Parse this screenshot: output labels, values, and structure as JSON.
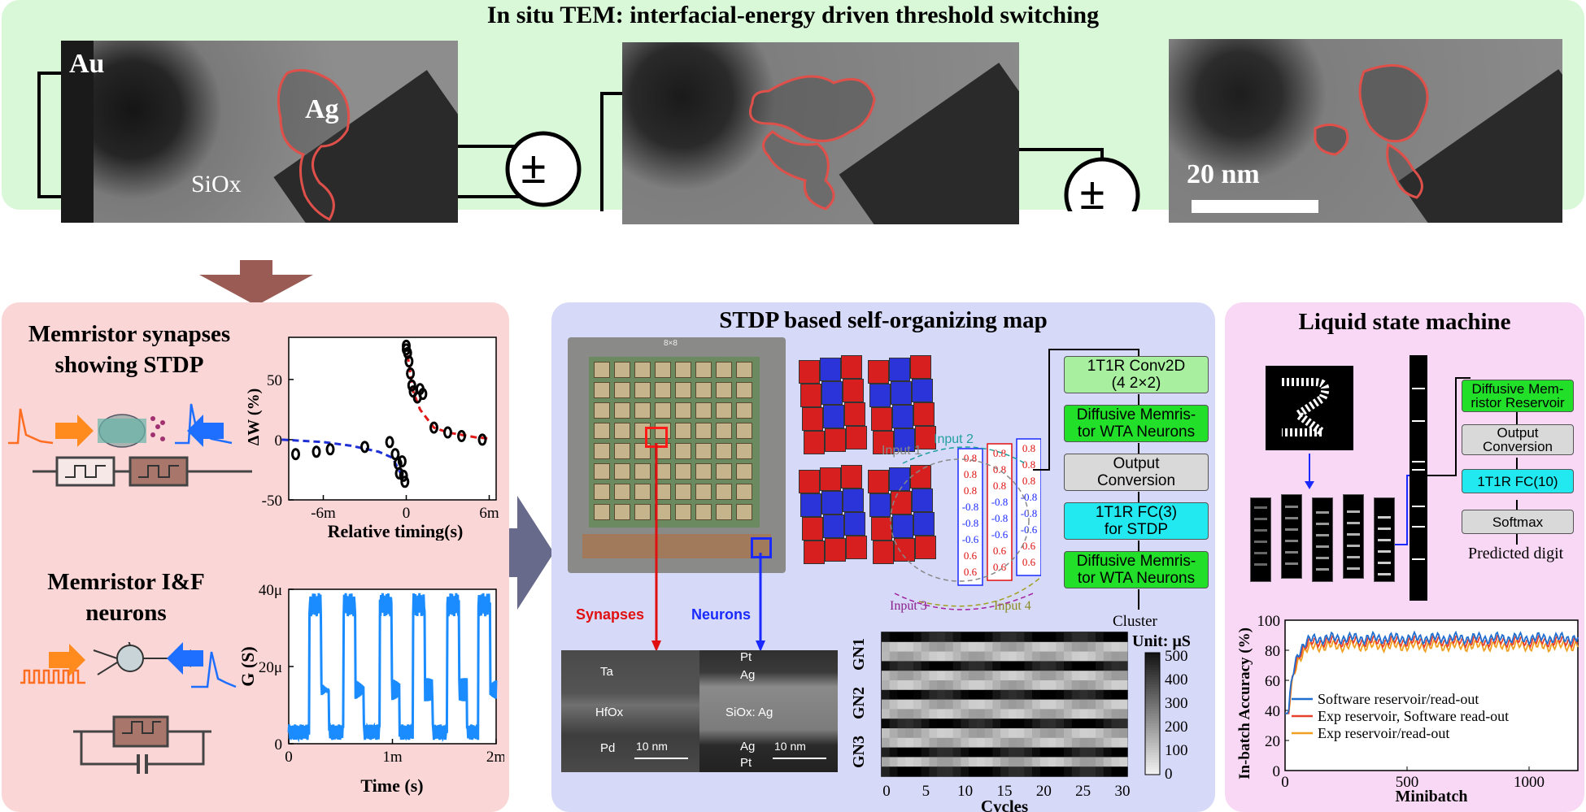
{
  "top_panel": {
    "title": "In situ TEM: interfacial-energy driven threshold switching",
    "labels": {
      "au": "Au",
      "ag": "Ag",
      "siox": "SiOx",
      "scale": "20 nm"
    },
    "source_symbol": "±"
  },
  "stdp_panel": {
    "title": "Memristor synapses showing STDP",
    "chart_data": {
      "type": "scatter",
      "xlabel": "Relative timing(s)",
      "ylabel": "ΔW (%)",
      "xlim": [
        -8.5,
        6.5
      ],
      "ylim": [
        -50,
        85
      ],
      "x_unit_suffix": "m",
      "x_ticks": [
        "-6m",
        "0",
        "6m"
      ],
      "y_ticks": [
        "50",
        "0",
        "-50"
      ],
      "points_x": [
        -8,
        -6.5,
        -5.5,
        -3,
        -1.2,
        -0.8,
        -0.6,
        -0.5,
        -0.3,
        -0.2,
        -0.1,
        0,
        0,
        0.1,
        0.2,
        0.3,
        0.4,
        0.5,
        0.8,
        1,
        1.2,
        2,
        3,
        4,
        5.5
      ],
      "points_y": [
        -12,
        -10,
        -8,
        -6,
        -2,
        -12,
        -20,
        -28,
        -18,
        -30,
        -35,
        78,
        75,
        72,
        65,
        55,
        45,
        40,
        35,
        42,
        38,
        10,
        6,
        3,
        0
      ],
      "fit_neg": {
        "x": [
          -9,
          -6,
          -4,
          -2,
          -1,
          -0.4
        ],
        "y": [
          0,
          -2,
          -5,
          -10,
          -15,
          -28
        ]
      },
      "fit_pos": {
        "x": [
          0.1,
          0.5,
          1,
          2,
          3,
          4,
          5,
          6
        ],
        "y": [
          70,
          40,
          25,
          10,
          6,
          4,
          2,
          1
        ]
      },
      "colors": {
        "neg": "#1f2fd6",
        "pos": "#e01818"
      }
    }
  },
  "neuron_panel": {
    "title": "Memristor I&F neurons",
    "chart_data": {
      "type": "line",
      "xlabel": "Time (s)",
      "ylabel": "G (S)",
      "xlim": [
        0,
        2
      ],
      "ylim": [
        0,
        40
      ],
      "x_ticks": [
        "0",
        "1m",
        "2m"
      ],
      "y_ticks": [
        "40μ",
        "20μ",
        "0"
      ],
      "spike_times": [
        0.22,
        0.55,
        0.9,
        1.22,
        1.55,
        1.85
      ],
      "color": "#1a8cff"
    }
  },
  "som_panel": {
    "title": "STDP based self-organizing map",
    "labels": {
      "synapses": "Synapses",
      "neurons": "Neurons",
      "input1": "Input 1",
      "input2": "Input 2",
      "input3": "Input 3",
      "input4": "Input 4",
      "cluster": "Cluster",
      "chip": "8×8",
      "ta": "Ta",
      "hfox": "HfOx",
      "pd": "Pd",
      "pt_top": "Pt",
      "ag_top": "Ag",
      "sioxag": "SiOx: Ag",
      "ag_bot": "Ag",
      "pt_bot": "Pt",
      "scale": "10 nm"
    },
    "weights": [
      "0.8",
      "0.8",
      "0.8",
      "-0.8",
      "-0.8",
      "-0.6",
      "0.6",
      "0.6"
    ],
    "pipeline": [
      {
        "label": "1T1R Conv2D\n(4 2×2)",
        "color": "#a8f0a0"
      },
      {
        "label": "Diffusive Memris-\ntor WTA Neurons",
        "color": "#22e02a"
      },
      {
        "label": "Output\nConversion",
        "color": "#d9d9d9"
      },
      {
        "label": "1T1R FC(3)\nfor STDP",
        "color": "#22e8f0"
      },
      {
        "label": "Diffusive Memris-\ntor WTA Neurons",
        "color": "#22e02a"
      }
    ],
    "heatmap": {
      "xlabel": "Cycles",
      "x_ticks": [
        "0",
        "5",
        "10",
        "15",
        "20",
        "25",
        "30"
      ],
      "row_labels": [
        "GN1",
        "GN2",
        "GN3"
      ],
      "colorbar_title": "Unit:  μS",
      "colorbar_ticks": [
        "500",
        "400",
        "300",
        "200",
        "100",
        "0"
      ]
    }
  },
  "lsm_panel": {
    "title": "Liquid state machine",
    "pipeline": [
      {
        "label": "Diffusive Mem-\nristor Reservoir",
        "color": "#22e02a"
      },
      {
        "label": "Output\nConversion",
        "color": "#d9d9d9"
      },
      {
        "label": "1T1R FC(10)",
        "color": "#22e8f0"
      },
      {
        "label": "Softmax",
        "color": "#d9d9d9"
      }
    ],
    "predicted": "Predicted digit",
    "chart_data": {
      "type": "line",
      "xlabel": "Minibatch",
      "ylabel": "In-batch Accuracy (%)",
      "xlim": [
        0,
        1200
      ],
      "ylim": [
        0,
        100
      ],
      "x_ticks": [
        "0",
        "500",
        "1000"
      ],
      "y_ticks": [
        "100",
        "80",
        "60",
        "40",
        "20",
        "0"
      ],
      "series": [
        {
          "name": "Software reservoir/read-out",
          "color": "#1f6fd0",
          "plateau": 88
        },
        {
          "name": "Exp reservoir, Software read-out",
          "color": "#e8402a",
          "plateau": 86
        },
        {
          "name": "Exp reservoir/read-out",
          "color": "#f0a020",
          "plateau": 83
        }
      ]
    }
  }
}
